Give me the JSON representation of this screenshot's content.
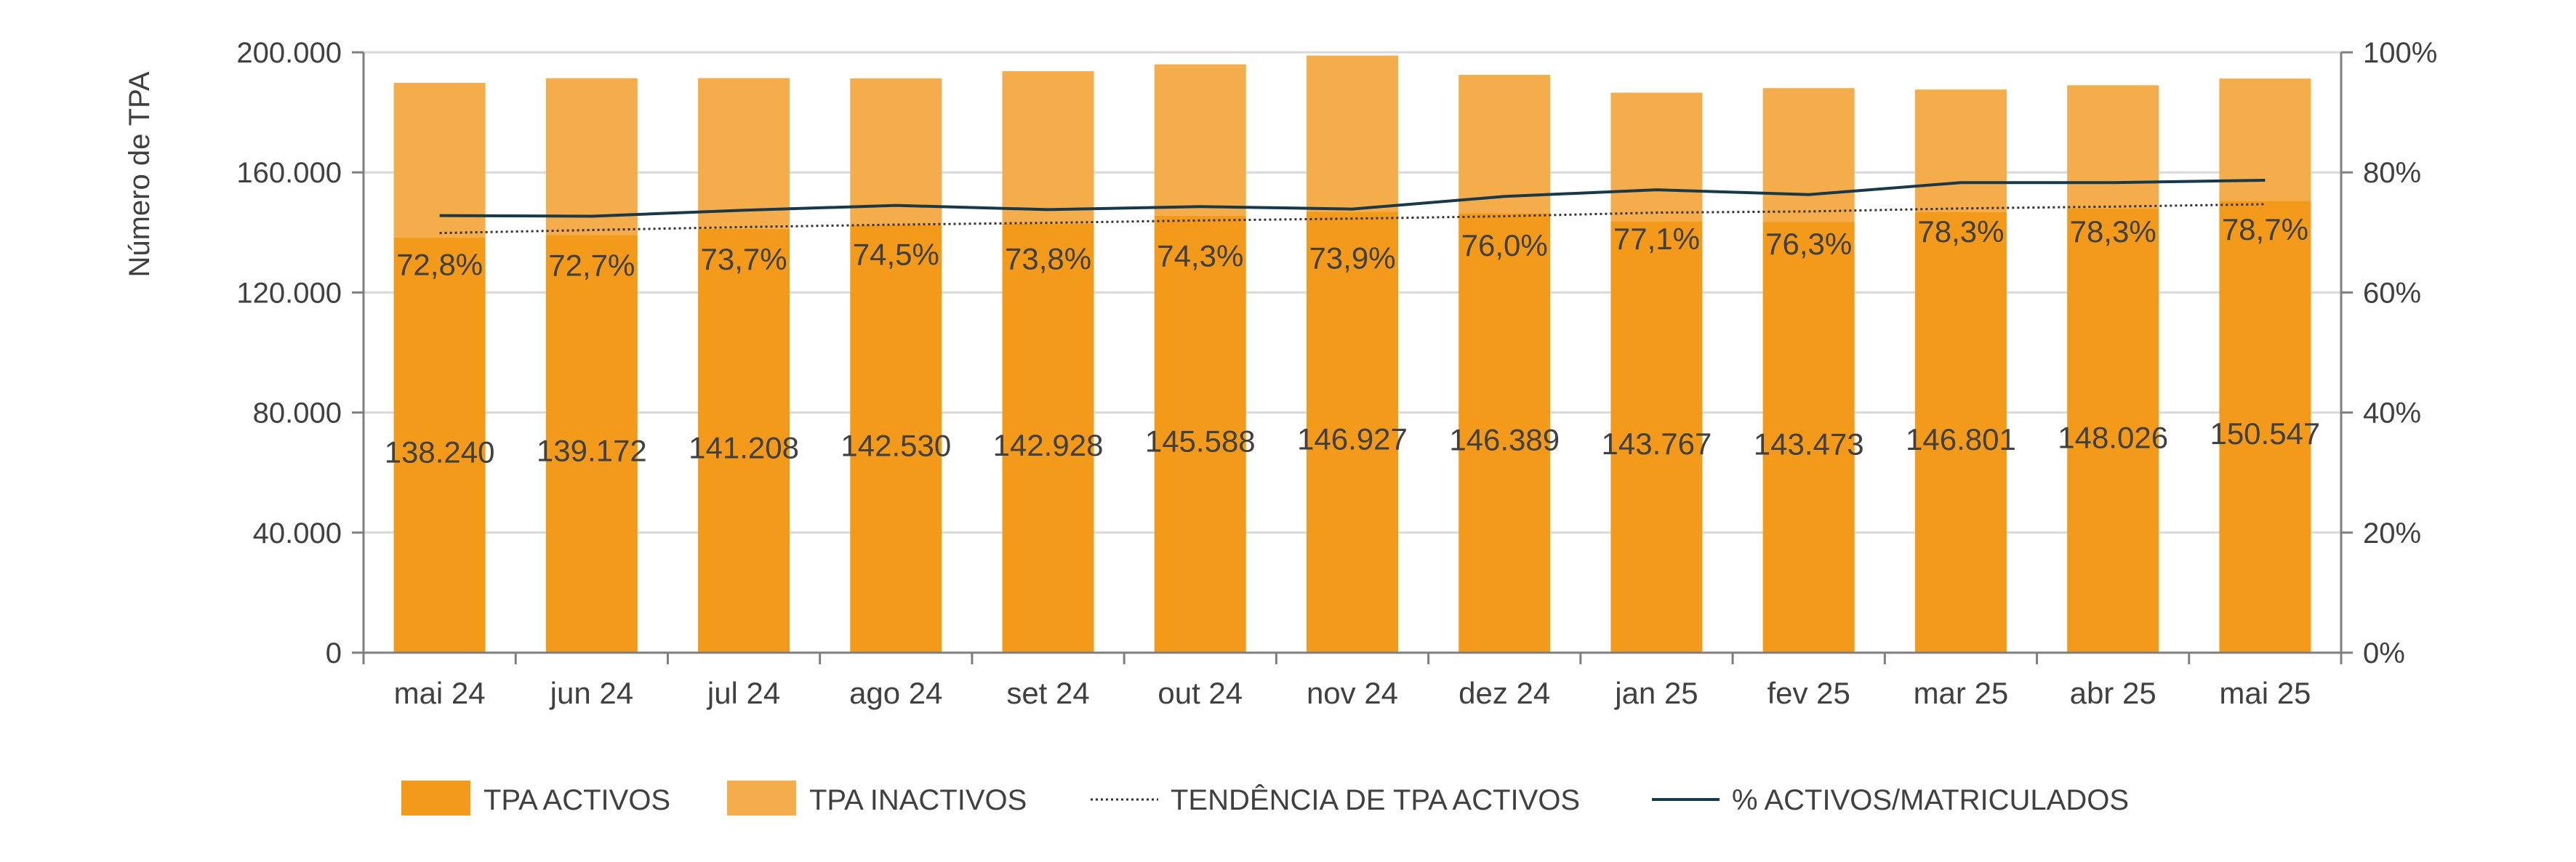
{
  "chart_data": {
    "type": "bar",
    "stacked": true,
    "categories": [
      "mai 24",
      "jun 24",
      "jul 24",
      "ago 24",
      "set 24",
      "out 24",
      "nov 24",
      "dez 24",
      "jan 25",
      "fev 25",
      "mar 25",
      "abr 25",
      "mai 25"
    ],
    "series": [
      {
        "name": "TPA ACTIVOS",
        "type": "bar",
        "axis": "left",
        "color": "#F39A1B",
        "values": [
          138240,
          139172,
          141208,
          142530,
          142928,
          145588,
          146927,
          146389,
          143767,
          143473,
          146801,
          148026,
          150547
        ],
        "labels": [
          "138.240",
          "139.172",
          "141.208",
          "142.530",
          "142.928",
          "145.588",
          "146.927",
          "146.389",
          "143.767",
          "143.473",
          "146.801",
          "148.026",
          "150.547"
        ]
      },
      {
        "name": "TPA INACTIVOS",
        "type": "bar",
        "axis": "left",
        "color": "#F5AC4A",
        "values": [
          51600,
          52200,
          50200,
          48800,
          50800,
          50400,
          52000,
          46100,
          42800,
          44600,
          40800,
          41000,
          40700
        ]
      },
      {
        "name": "TENDÊNCIA DE TPA ACTIVOS",
        "type": "line",
        "style": "dotted",
        "axis": "right",
        "color": "#333333",
        "values": [
          69.9,
          70.4,
          70.9,
          71.3,
          71.6,
          72.0,
          72.3,
          72.7,
          73.3,
          73.5,
          74.0,
          74.3,
          74.7
        ]
      },
      {
        "name": "% ACTIVOS/MATRICULADOS",
        "type": "line",
        "axis": "right",
        "color": "#17394A",
        "values": [
          72.8,
          72.7,
          73.7,
          74.5,
          73.8,
          74.3,
          73.9,
          76.0,
          77.1,
          76.3,
          78.3,
          78.3,
          78.7
        ],
        "labels": [
          "72,8%",
          "72,7%",
          "73,7%",
          "74,5%",
          "73,8%",
          "74,3%",
          "73,9%",
          "76,0%",
          "77,1%",
          "76,3%",
          "78,3%",
          "78,3%",
          "78,7%"
        ]
      }
    ],
    "y_left": {
      "label": "Número de TPA",
      "ylim": [
        0,
        200000
      ],
      "ticks": [
        0,
        40000,
        80000,
        120000,
        160000,
        200000
      ],
      "tick_labels": [
        "0",
        "40.000",
        "80.000",
        "120.000",
        "160.000",
        "200.000"
      ]
    },
    "y_right": {
      "ylim": [
        0,
        100
      ],
      "ticks": [
        0,
        20,
        40,
        60,
        80,
        100
      ],
      "tick_labels": [
        "0%",
        "20%",
        "40%",
        "60%",
        "80%",
        "100%"
      ]
    },
    "grid": true,
    "legend": "bottom",
    "colors": {
      "text": "#404040",
      "grid": "#D9D9D9",
      "axis": "#7F7F7F"
    }
  }
}
